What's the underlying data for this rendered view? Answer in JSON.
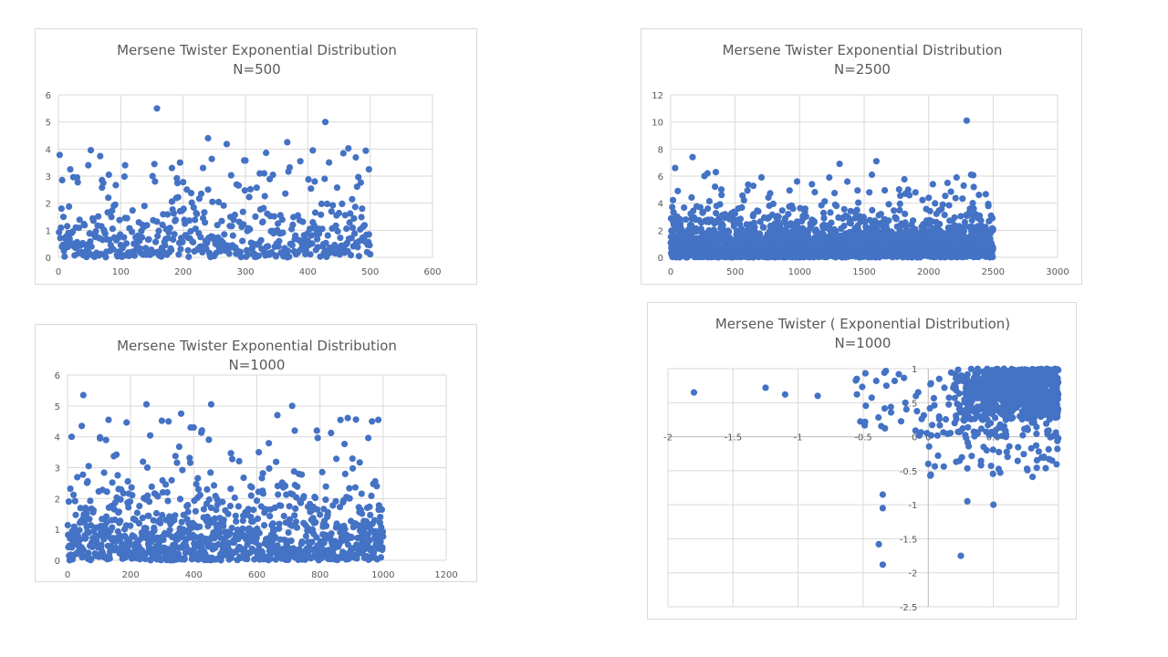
{
  "colors": {
    "marker": "#4472c4",
    "grid": "#d9d9d9",
    "text": "#595959",
    "border": "#d9d9d9"
  },
  "chart_data": [
    {
      "id": "n500",
      "type": "scatter",
      "title": [
        "Mersene Twister Exponential Distribution",
        "N=500"
      ],
      "xlim": [
        0,
        600
      ],
      "ylim": [
        0,
        6
      ],
      "xticks": [
        0,
        100,
        200,
        300,
        400,
        500,
        600
      ],
      "yticks": [
        0,
        1,
        2,
        3,
        4,
        5,
        6
      ],
      "grid": true,
      "legend": "none",
      "sample_count": 500,
      "x_range_of_points": [
        1,
        500
      ],
      "highlight_points": [
        [
          158,
          5.5
        ],
        [
          428,
          5.0
        ],
        [
          240,
          4.4
        ],
        [
          367,
          4.25
        ],
        [
          408,
          3.95
        ],
        [
          195,
          3.5
        ],
        [
          388,
          3.55
        ],
        [
          48,
          3.4
        ],
        [
          107,
          3.4
        ],
        [
          498,
          3.25
        ],
        [
          30,
          2.95
        ],
        [
          330,
          3.1
        ],
        [
          182,
          3.3
        ],
        [
          232,
          3.3
        ],
        [
          6,
          2.85
        ],
        [
          70,
          2.85
        ]
      ],
      "y_scale": 0.95
    },
    {
      "id": "n2500",
      "type": "scatter",
      "title": [
        "Mersene Twister Exponential Distribution",
        "N=2500"
      ],
      "xlim": [
        0,
        3000
      ],
      "ylim": [
        0,
        12
      ],
      "xticks": [
        0,
        500,
        1000,
        1500,
        2000,
        2500,
        3000
      ],
      "yticks": [
        0,
        2,
        4,
        6,
        8,
        10,
        12
      ],
      "grid": true,
      "legend": "none",
      "sample_count": 2500,
      "x_range_of_points": [
        1,
        2500
      ],
      "highlight_points": [
        [
          2295,
          10.1
        ],
        [
          170,
          7.4
        ],
        [
          1595,
          7.1
        ],
        [
          1310,
          6.9
        ],
        [
          35,
          6.6
        ],
        [
          350,
          6.3
        ],
        [
          2330,
          6.1
        ],
        [
          1560,
          6.1
        ],
        [
          285,
          6.2
        ],
        [
          1230,
          5.9
        ],
        [
          980,
          5.6
        ],
        [
          2350,
          5.2
        ],
        [
          55,
          4.9
        ],
        [
          1540,
          4.8
        ],
        [
          1820,
          4.7
        ]
      ],
      "y_scale": 1.0
    },
    {
      "id": "n1000",
      "type": "scatter",
      "title": [
        "Mersene Twister Exponential Distribution",
        "N=1000"
      ],
      "xlim": [
        0,
        1200
      ],
      "ylim": [
        0,
        6
      ],
      "xticks": [
        0,
        200,
        400,
        600,
        800,
        1000,
        1200
      ],
      "yticks": [
        0,
        1,
        2,
        3,
        4,
        5,
        6
      ],
      "grid": true,
      "legend": "none",
      "sample_count": 1000,
      "x_range_of_points": [
        1,
        1000
      ],
      "highlight_points": [
        [
          50,
          5.35
        ],
        [
          250,
          5.05
        ],
        [
          455,
          5.05
        ],
        [
          712,
          5.0
        ],
        [
          360,
          4.75
        ],
        [
          665,
          4.7
        ],
        [
          130,
          4.55
        ],
        [
          320,
          4.5
        ],
        [
          965,
          4.5
        ],
        [
          985,
          4.55
        ],
        [
          45,
          4.35
        ],
        [
          390,
          4.3
        ],
        [
          400,
          4.3
        ],
        [
          720,
          4.2
        ],
        [
          790,
          4.2
        ],
        [
          103,
          3.95
        ]
      ],
      "y_scale": 0.95
    },
    {
      "id": "n1000-pairs",
      "type": "scatter",
      "title": [
        "Mersene Twister ( Exponential Distribution)",
        "N=1000"
      ],
      "xlim": [
        -2,
        1
      ],
      "ylim": [
        -2.5,
        1
      ],
      "xticks": [
        -2,
        -1.5,
        -1,
        -0.5,
        0,
        0.5,
        1
      ],
      "xtick_labels": [
        "-2",
        "-1.5",
        "-1",
        "-0.5",
        "0",
        "0.5",
        "1"
      ],
      "yticks": [
        -2.5,
        -2,
        -1.5,
        -1,
        -0.5,
        0,
        0.5,
        1
      ],
      "ytick_labels": [
        "-2.5",
        "-2",
        "-1.5",
        "-1",
        "-0.5",
        "0",
        "0.5",
        "1"
      ],
      "grid": true,
      "legend": "none",
      "sample_count": 1000,
      "outlier_points": [
        [
          -1.8,
          0.65
        ],
        [
          -1.25,
          0.72
        ],
        [
          -1.1,
          0.62
        ],
        [
          -0.85,
          0.6
        ],
        [
          -0.55,
          0.85
        ],
        [
          -0.4,
          0.82
        ],
        [
          -0.35,
          -0.85
        ],
        [
          -0.35,
          -1.05
        ],
        [
          -0.38,
          -1.58
        ],
        [
          -0.35,
          -1.88
        ],
        [
          0.25,
          -1.75
        ],
        [
          0.5,
          -1.0
        ],
        [
          0.3,
          -0.95
        ],
        [
          0.0,
          -0.4
        ],
        [
          0.95,
          -0.35
        ]
      ]
    }
  ]
}
